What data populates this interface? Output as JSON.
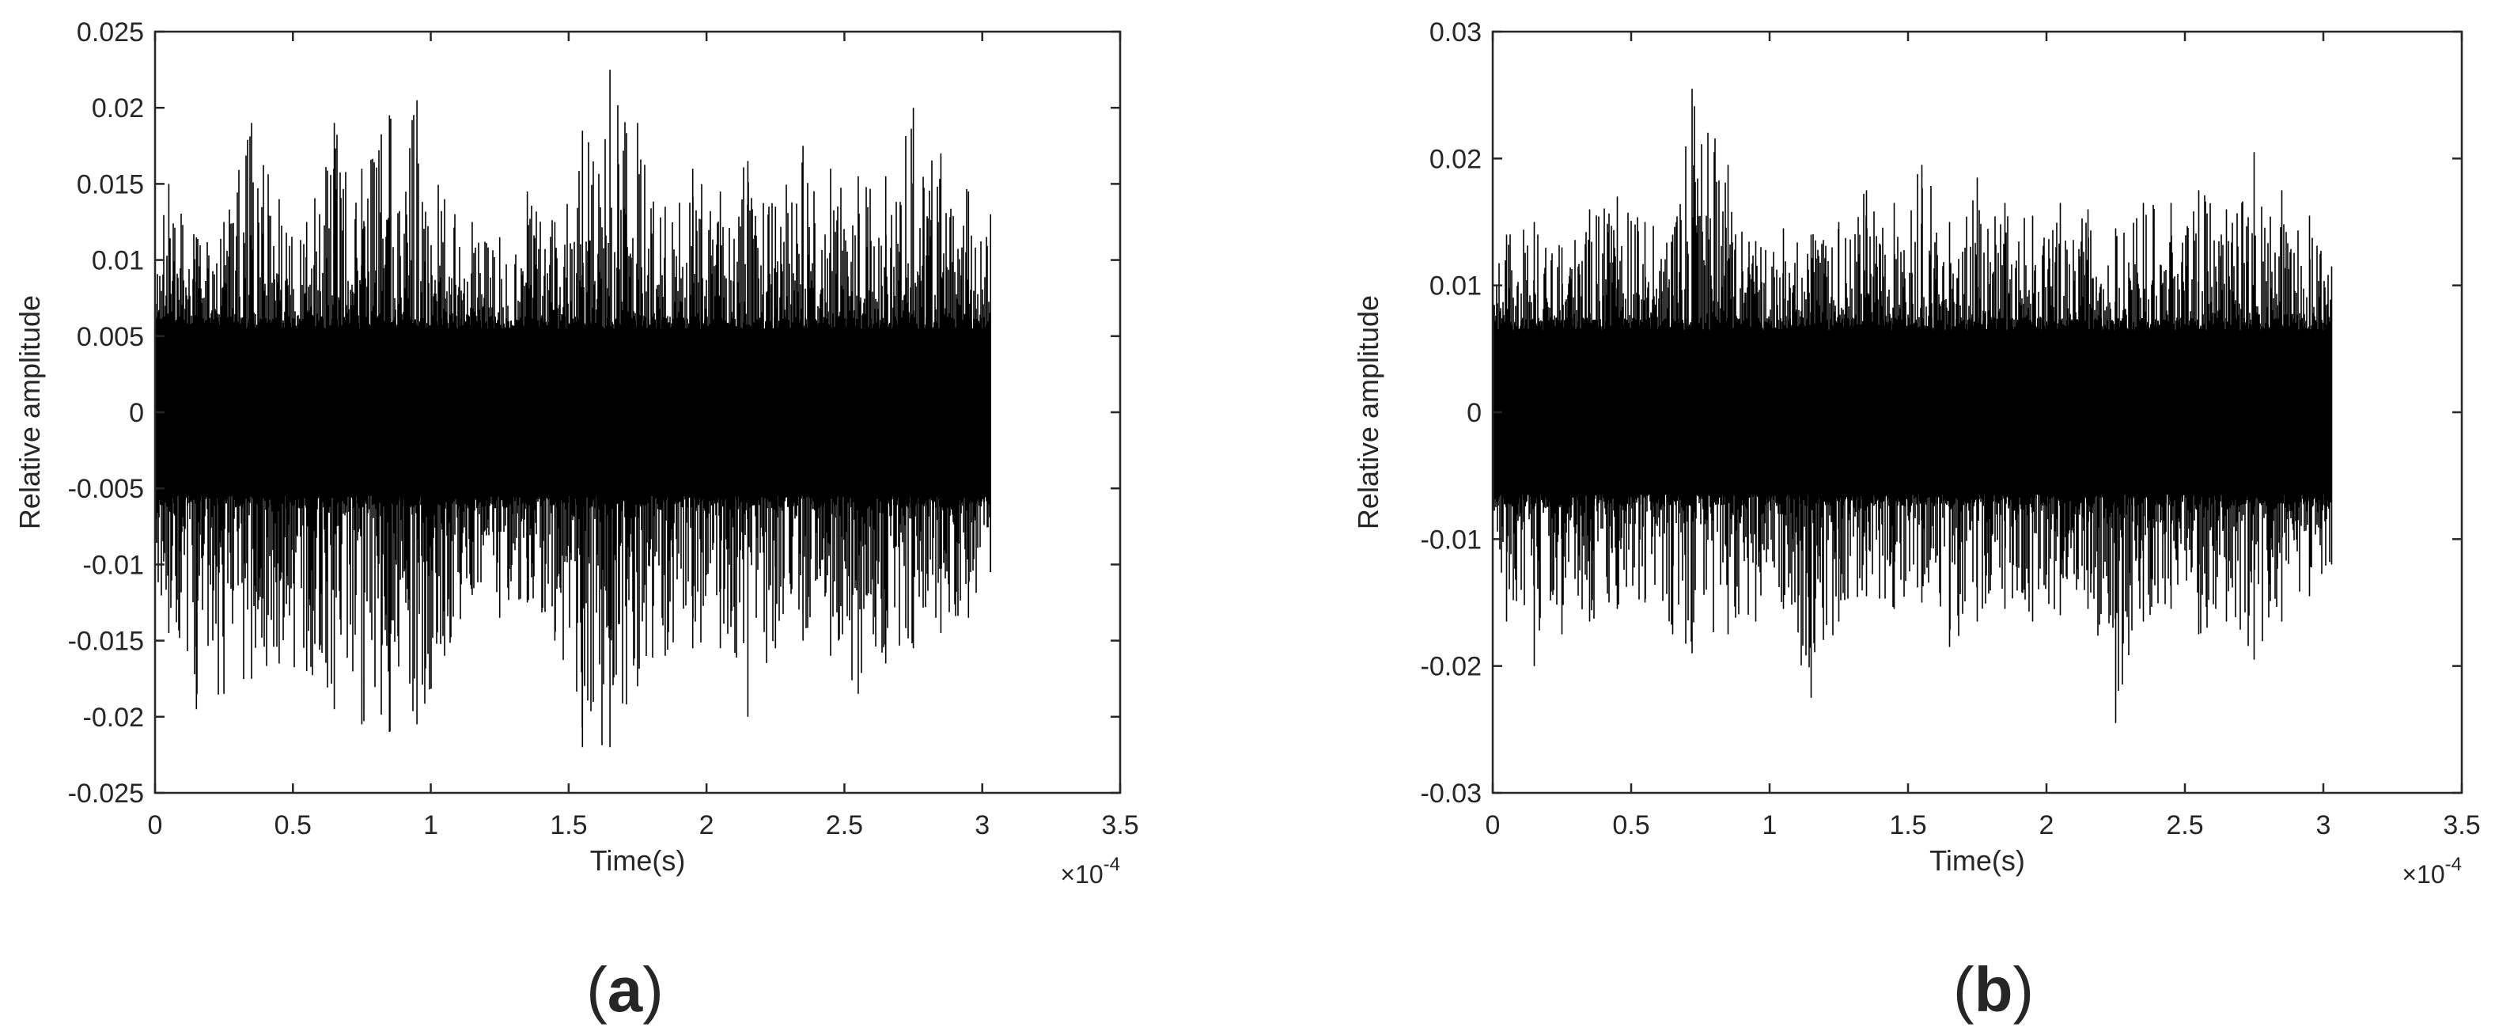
{
  "charts": [
    {
      "panel_label_open": "(",
      "panel_label_letter": "a",
      "panel_label_close": ")",
      "chart_data": {
        "type": "line",
        "title": "",
        "xlabel": "Time(s)",
        "ylabel": "Relative amplitude",
        "x_exponent_label": "×10",
        "x_exponent_power": "-4",
        "xlim": [
          0,
          3.5
        ],
        "ylim": [
          -0.025,
          0.025
        ],
        "xticks": [
          0,
          0.5,
          1,
          1.5,
          2,
          2.5,
          3,
          3.5
        ],
        "xtick_labels": [
          "0",
          "0.5",
          "1",
          "1.5",
          "2",
          "2.5",
          "3",
          "3.5"
        ],
        "yticks": [
          -0.025,
          -0.02,
          -0.015,
          -0.01,
          -0.005,
          0,
          0.005,
          0.01,
          0.015,
          0.02,
          0.025
        ],
        "ytick_labels": [
          "-0.025",
          "-0.02",
          "-0.015",
          "-0.01",
          "-0.005",
          "0",
          "0.005",
          "0.01",
          "0.015",
          "0.02",
          "0.025"
        ],
        "grid": false,
        "signal": {
          "x_start": 0,
          "x_end": 3.03,
          "color": "#000000",
          "envelope_x": [
            0,
            0.05,
            0.15,
            0.25,
            0.35,
            0.45,
            0.55,
            0.65,
            0.75,
            0.85,
            0.95,
            1.05,
            1.15,
            1.25,
            1.35,
            1.45,
            1.55,
            1.65,
            1.75,
            1.85,
            1.95,
            2.05,
            2.15,
            2.25,
            2.35,
            2.45,
            2.55,
            2.65,
            2.75,
            2.85,
            2.95,
            3.03
          ],
          "envelope_max": [
            0.013,
            0.015,
            0.0115,
            0.0125,
            0.019,
            0.014,
            0.0125,
            0.019,
            0.016,
            0.0195,
            0.0205,
            0.014,
            0.0125,
            0.0115,
            0.0145,
            0.0125,
            0.0185,
            0.0225,
            0.019,
            0.0135,
            0.016,
            0.0145,
            0.0165,
            0.0135,
            0.0175,
            0.016,
            0.0155,
            0.0155,
            0.02,
            0.017,
            0.0145,
            0.013
          ],
          "envelope_min": [
            -0.011,
            -0.0145,
            -0.0195,
            -0.0185,
            -0.0175,
            -0.0165,
            -0.017,
            -0.0195,
            -0.0205,
            -0.021,
            -0.0205,
            -0.016,
            -0.012,
            -0.0135,
            -0.0125,
            -0.015,
            -0.022,
            -0.022,
            -0.018,
            -0.016,
            -0.0155,
            -0.0155,
            -0.02,
            -0.0155,
            -0.015,
            -0.016,
            -0.0185,
            -0.0165,
            -0.0155,
            -0.0145,
            -0.0135,
            -0.0105
          ],
          "core_amplitude": 0.0055
        }
      }
    },
    {
      "panel_label_open": "(",
      "panel_label_letter": "b",
      "panel_label_close": ")",
      "chart_data": {
        "type": "line",
        "title": "",
        "xlabel": "Time(s)",
        "ylabel": "Relative amplitude",
        "x_exponent_label": "×10",
        "x_exponent_power": "-4",
        "xlim": [
          0,
          3.5
        ],
        "ylim": [
          -0.03,
          0.03
        ],
        "xticks": [
          0,
          0.5,
          1,
          1.5,
          2,
          2.5,
          3,
          3.5
        ],
        "xtick_labels": [
          "0",
          "0.5",
          "1",
          "1.5",
          "2",
          "2.5",
          "3",
          "3.5"
        ],
        "yticks": [
          -0.03,
          -0.02,
          -0.01,
          0,
          0.01,
          0.02,
          0.03
        ],
        "ytick_labels": [
          "-0.03",
          "-0.02",
          "-0.01",
          "0",
          "0.01",
          "0.02",
          "0.03"
        ],
        "grid": false,
        "signal": {
          "x_start": 0,
          "x_end": 3.03,
          "color": "#000000",
          "envelope_x": [
            0,
            0.05,
            0.15,
            0.25,
            0.35,
            0.45,
            0.55,
            0.65,
            0.72,
            0.85,
            0.95,
            1.05,
            1.15,
            1.25,
            1.35,
            1.45,
            1.55,
            1.65,
            1.75,
            1.85,
            1.95,
            2.05,
            2.15,
            2.25,
            2.35,
            2.45,
            2.55,
            2.65,
            2.75,
            2.85,
            2.95,
            3.03
          ],
          "envelope_max": [
            0.011,
            0.014,
            0.015,
            0.013,
            0.016,
            0.017,
            0.015,
            0.014,
            0.0255,
            0.0195,
            0.0135,
            0.0145,
            0.014,
            0.015,
            0.0175,
            0.0165,
            0.0195,
            0.015,
            0.0185,
            0.0165,
            0.0155,
            0.0165,
            0.016,
            0.0145,
            0.0165,
            0.0165,
            0.0175,
            0.016,
            0.0205,
            0.0175,
            0.0155,
            0.0115
          ],
          "envelope_min": [
            -0.011,
            -0.0165,
            -0.02,
            -0.0175,
            -0.0165,
            -0.0155,
            -0.015,
            -0.0175,
            -0.019,
            -0.0175,
            -0.0165,
            -0.0155,
            -0.0225,
            -0.0165,
            -0.0145,
            -0.0155,
            -0.015,
            -0.0185,
            -0.0165,
            -0.0155,
            -0.0165,
            -0.016,
            -0.0155,
            -0.0245,
            -0.0165,
            -0.0155,
            -0.0175,
            -0.0165,
            -0.0195,
            -0.0165,
            -0.0145,
            -0.012
          ],
          "core_amplitude": 0.0065
        }
      }
    }
  ]
}
